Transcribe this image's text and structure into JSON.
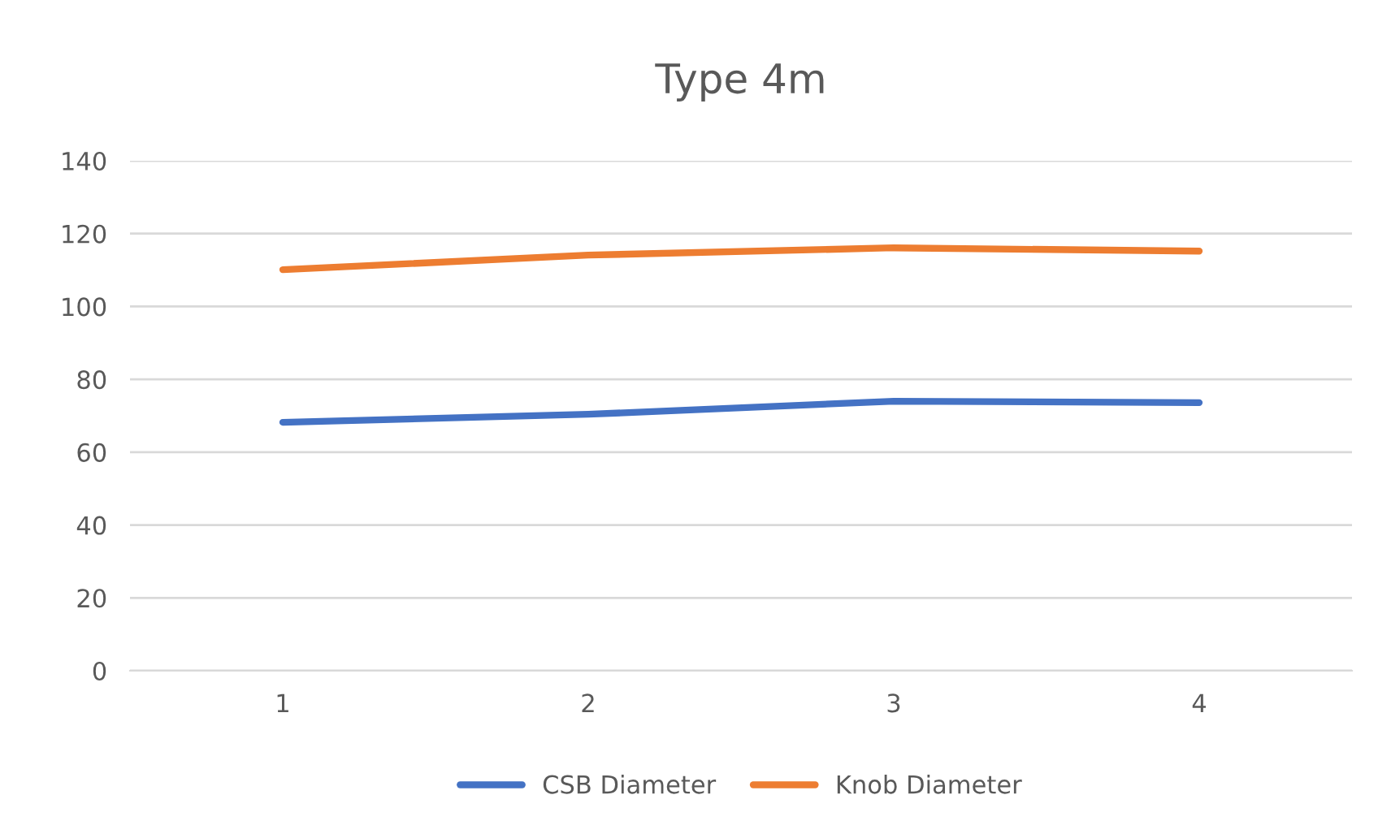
{
  "chart_data": {
    "type": "line",
    "title": "Type 4m",
    "categories": [
      "1",
      "2",
      "3",
      "4"
    ],
    "series": [
      {
        "name": "CSB Diameter",
        "color": "#4472c4",
        "values": [
          68.2,
          70.4,
          74.0,
          73.6
        ]
      },
      {
        "name": "Knob Diameter",
        "color": "#ed7d31",
        "values": [
          110.1,
          114.1,
          116.1,
          115.2
        ]
      }
    ],
    "ylim": [
      0,
      140
    ],
    "yticks": [
      0,
      20,
      40,
      60,
      80,
      100,
      120,
      140
    ],
    "grid": "y",
    "legend": "bottom",
    "marker": "none",
    "line_style": "solid"
  }
}
